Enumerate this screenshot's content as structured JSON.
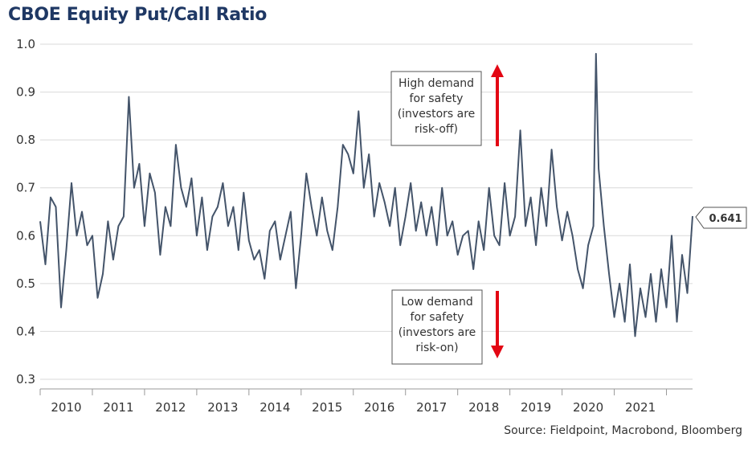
{
  "title": "CBOE Equity Put/Call Ratio",
  "source": "Source: Fieldpoint, Macrobond, Bloomberg",
  "colors": {
    "line": "#44546a",
    "arrow": "#e30613",
    "title": "#1f3864",
    "grid": "#d9d9d9"
  },
  "annotations": {
    "high": [
      "High demand",
      "for safety",
      "(investors are",
      "risk-off)"
    ],
    "low": [
      "Low demand",
      "for safety",
      "(investors are",
      "risk-on)"
    ]
  },
  "last_value_label": "0.641",
  "chart_data": {
    "type": "line",
    "title": "CBOE Equity Put/Call Ratio",
    "xlabel": "",
    "ylabel": "",
    "ylim": [
      0.3,
      1.0
    ],
    "yticks": [
      "0.3",
      "0.4",
      "0.5",
      "0.6",
      "0.7",
      "0.8",
      "0.9",
      "1.0"
    ],
    "xticks": [
      "2010",
      "2011",
      "2012",
      "2013",
      "2014",
      "2015",
      "2016",
      "2017",
      "2018",
      "2019",
      "2020",
      "2021"
    ],
    "grid": true,
    "series": [
      {
        "x": [
          2009.5,
          2009.6,
          2009.7,
          2009.8,
          2009.9,
          2010.0,
          2010.1,
          2010.2,
          2010.3,
          2010.4,
          2010.5,
          2010.6,
          2010.7,
          2010.8,
          2010.9,
          2011.0,
          2011.1,
          2011.2,
          2011.3,
          2011.4,
          2011.5,
          2011.6,
          2011.7,
          2011.8,
          2011.9,
          2012.0,
          2012.1,
          2012.2,
          2012.3,
          2012.4,
          2012.5,
          2012.6,
          2012.7,
          2012.8,
          2012.9,
          2013.0,
          2013.1,
          2013.2,
          2013.3,
          2013.4,
          2013.5,
          2013.6,
          2013.7,
          2013.8,
          2013.9,
          2014.0,
          2014.1,
          2014.2,
          2014.3,
          2014.4,
          2014.5,
          2014.6,
          2014.7,
          2014.8,
          2014.9,
          2015.0,
          2015.1,
          2015.2,
          2015.3,
          2015.4,
          2015.5,
          2015.6,
          2015.7,
          2015.8,
          2015.9,
          2016.0,
          2016.1,
          2016.2,
          2016.3,
          2016.4,
          2016.5,
          2016.6,
          2016.7,
          2016.8,
          2016.9,
          2017.0,
          2017.1,
          2017.2,
          2017.3,
          2017.4,
          2017.5,
          2017.6,
          2017.7,
          2017.8,
          2017.9,
          2018.0,
          2018.1,
          2018.2,
          2018.3,
          2018.4,
          2018.5,
          2018.6,
          2018.7,
          2018.8,
          2018.9,
          2019.0,
          2019.1,
          2019.2,
          2019.3,
          2019.4,
          2019.5,
          2019.6,
          2019.7,
          2019.8,
          2019.9,
          2020.0,
          2020.1,
          2020.15,
          2020.2,
          2020.3,
          2020.4,
          2020.5,
          2020.6,
          2020.7,
          2020.8,
          2020.9,
          2021.0,
          2021.1,
          2021.2,
          2021.3,
          2021.4,
          2021.5,
          2021.6,
          2021.7,
          2021.8,
          2021.9,
          2022.0
        ],
        "values": [
          0.63,
          0.54,
          0.68,
          0.66,
          0.45,
          0.57,
          0.71,
          0.6,
          0.65,
          0.58,
          0.6,
          0.47,
          0.52,
          0.63,
          0.55,
          0.62,
          0.64,
          0.89,
          0.7,
          0.75,
          0.62,
          0.73,
          0.69,
          0.56,
          0.66,
          0.62,
          0.79,
          0.7,
          0.66,
          0.72,
          0.6,
          0.68,
          0.57,
          0.64,
          0.66,
          0.71,
          0.62,
          0.66,
          0.57,
          0.69,
          0.59,
          0.55,
          0.57,
          0.51,
          0.61,
          0.63,
          0.55,
          0.6,
          0.65,
          0.49,
          0.6,
          0.73,
          0.66,
          0.6,
          0.68,
          0.61,
          0.57,
          0.66,
          0.79,
          0.77,
          0.73,
          0.86,
          0.7,
          0.77,
          0.64,
          0.71,
          0.67,
          0.62,
          0.7,
          0.58,
          0.64,
          0.71,
          0.61,
          0.67,
          0.6,
          0.66,
          0.58,
          0.7,
          0.6,
          0.63,
          0.56,
          0.6,
          0.61,
          0.53,
          0.63,
          0.57,
          0.7,
          0.6,
          0.58,
          0.71,
          0.6,
          0.64,
          0.82,
          0.62,
          0.68,
          0.58,
          0.7,
          0.62,
          0.78,
          0.66,
          0.59,
          0.65,
          0.6,
          0.53,
          0.49,
          0.58,
          0.62,
          0.98,
          0.74,
          0.62,
          0.52,
          0.43,
          0.5,
          0.42,
          0.54,
          0.39,
          0.49,
          0.43,
          0.52,
          0.42,
          0.53,
          0.45,
          0.6,
          0.42,
          0.56,
          0.48,
          0.641
        ]
      }
    ]
  }
}
